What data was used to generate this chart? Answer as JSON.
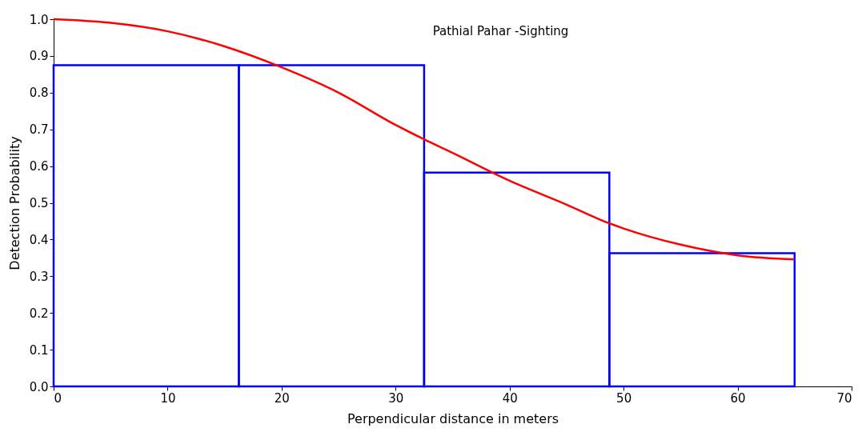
{
  "chart_data": {
    "type": "histogram",
    "title": "Pathial Pahar -Sighting",
    "xlabel": "Perpendicular distance in meters",
    "ylabel": "Detection Probability",
    "series": [
      {
        "bins": [
          0,
          16.25,
          32.5,
          48.75,
          65
        ],
        "values": [
          0.875,
          0.875,
          0.582,
          0.363
        ],
        "color": "#0000ff"
      },
      {
        "type": "line",
        "x": [
          0,
          5,
          10,
          15,
          20,
          25,
          30,
          32.5,
          35,
          40,
          45,
          48.75,
          50,
          55,
          60,
          65
        ],
        "values": [
          1.0,
          0.99,
          0.967,
          0.926,
          0.869,
          0.8,
          0.712,
          0.673,
          0.636,
          0.56,
          0.495,
          0.444,
          0.43,
          0.386,
          0.357,
          0.346
        ],
        "color": "#ff0000"
      }
    ],
    "xlim": [
      0,
      70
    ],
    "xticks": [
      0,
      10,
      20,
      30,
      40,
      50,
      60,
      70
    ],
    "ylim": [
      0,
      1
    ],
    "yticks": [
      {
        "value": 0,
        "label": "0.0"
      },
      0.1,
      0.2,
      0.3,
      0.4,
      0.5,
      0.6,
      0.7,
      0.8,
      0.9,
      {
        "value": 1,
        "label": "1.0"
      }
    ]
  }
}
